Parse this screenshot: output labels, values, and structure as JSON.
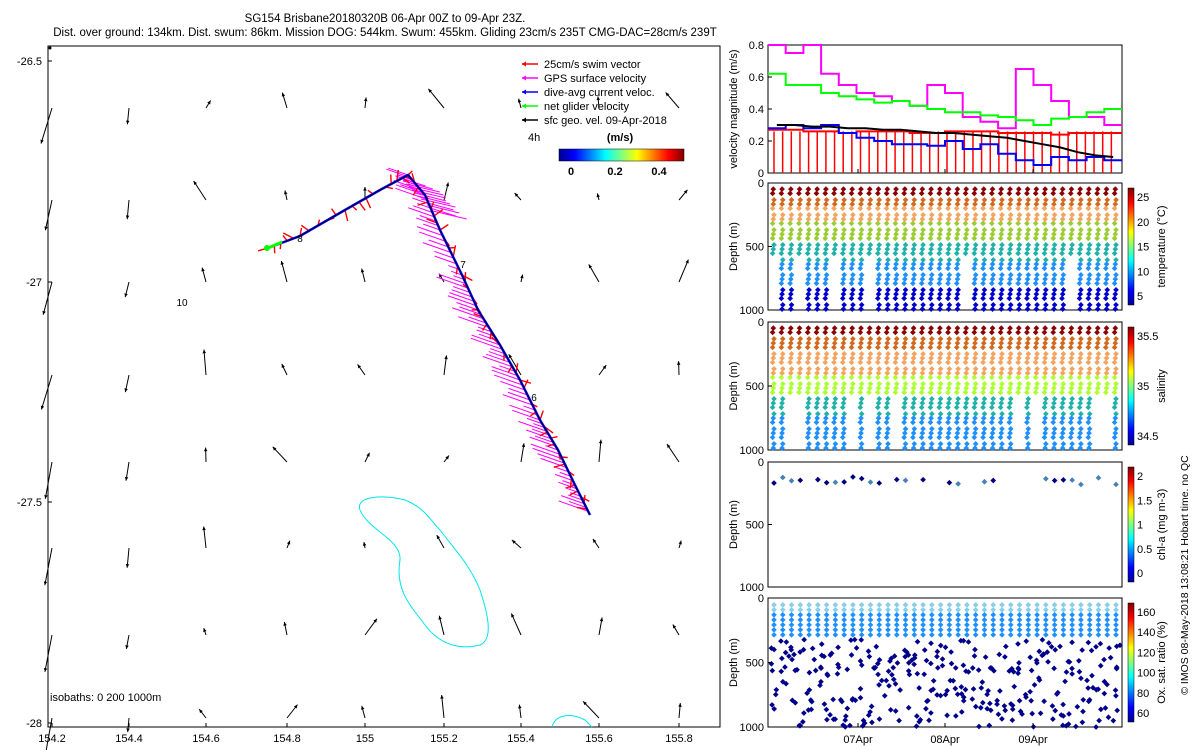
{
  "header": {
    "title": "SG154 Brisbane20180320B 06-Apr 00Z to 09-Apr 23Z.",
    "subtitle": "Dist. over ground: 134km. Dist. swum: 86km. Mission DOG: 544km. Swum: 455km. Gliding 23cm/s 235T CMG-DAC=28cm/s 239T"
  },
  "copyright": "© IMOS 08-May-2018 13:08:21 Hobart time. no QC",
  "map": {
    "x_ticks": [
      "154.2",
      "154.4",
      "154.6",
      "154.8",
      "155",
      "155.2",
      "155.4",
      "155.6",
      "155.8"
    ],
    "y_ticks": [
      "-26.5",
      "-27",
      "-27.5",
      "-28"
    ],
    "legend": [
      {
        "label": "25cm/s swim vector",
        "color": "#ff0000"
      },
      {
        "label": "GPS surface velocity",
        "color": "#ff00ff"
      },
      {
        "label": "dive-avg current veloc.",
        "color": "#0000ff"
      },
      {
        "label": "net glider velocity",
        "color": "#00ff00"
      },
      {
        "label": "sfc geo. vel. 09-Apr-2018",
        "color": "#000000"
      }
    ],
    "colorbar_label": "(m/s)",
    "colorbar_ticks": [
      "0",
      "0.2",
      "0.4"
    ],
    "colorbar_side_label": "4h",
    "isobaths_label": "isobaths: 0   200  1000m",
    "annotations": [
      "10",
      "7",
      "6",
      "8"
    ],
    "isobath_color": "#00e5ee",
    "track_color": "#0000ff",
    "swim_color": "#ff0000",
    "gps_color": "#ff00ff"
  },
  "chart_data": [
    {
      "type": "line",
      "ylabel": "velocity magnitude (m/s)",
      "ylim": [
        0,
        0.8
      ],
      "y_ticks": [
        "0.8",
        "0.6",
        "0.4",
        "0.2",
        "0"
      ],
      "x_ticks": [
        "07Apr",
        "08Apr",
        "09Apr"
      ],
      "series": [
        {
          "color": "#ff00ff",
          "values": [
            0.8,
            0.75,
            0.8,
            0.62,
            0.55,
            0.5,
            0.48,
            0.45,
            0.42,
            0.55,
            0.5,
            0.35,
            0.32,
            0.28,
            0.65,
            0.55,
            0.45,
            0.35,
            0.35,
            0.3
          ]
        },
        {
          "color": "#00ff00",
          "values": [
            0.62,
            0.55,
            0.55,
            0.5,
            0.48,
            0.46,
            0.44,
            0.45,
            0.42,
            0.4,
            0.38,
            0.38,
            0.36,
            0.35,
            0.33,
            0.3,
            0.34,
            0.35,
            0.38,
            0.4
          ]
        },
        {
          "color": "#ff0000",
          "values": [
            0.27,
            0.27,
            0.26,
            0.26,
            0.25,
            0.26,
            0.26,
            0.26,
            0.25,
            0.25,
            0.26,
            0.26,
            0.26,
            0.25,
            0.25,
            0.25,
            0.24,
            0.25,
            0.25,
            0.25
          ]
        },
        {
          "color": "#0000ff",
          "values": [
            0.28,
            0.3,
            0.28,
            0.3,
            0.25,
            0.22,
            0.2,
            0.18,
            0.18,
            0.17,
            0.2,
            0.15,
            0.18,
            0.12,
            0.08,
            0.05,
            0.1,
            0.08,
            0.1,
            0.08
          ]
        },
        {
          "color": "#000000",
          "values": [
            0.3,
            0.3,
            0.29,
            0.29,
            0.28,
            0.28,
            0.27,
            0.27,
            0.26,
            0.25,
            0.25,
            0.24,
            0.23,
            0.22,
            0.2,
            0.18,
            0.16,
            0.13,
            0.11,
            0.1
          ]
        }
      ]
    },
    {
      "type": "scatter",
      "ylabel": "Depth (m)",
      "colorbar_label": "temperature (°C)",
      "y_ticks": [
        "0",
        "500",
        "1000"
      ],
      "colorbar_ticks": [
        "25",
        "20",
        "15",
        "10",
        "5"
      ]
    },
    {
      "type": "scatter",
      "ylabel": "Depth (m)",
      "colorbar_label": "salinity",
      "y_ticks": [
        "0",
        "500",
        "1000"
      ],
      "colorbar_ticks": [
        "35.5",
        "35",
        "34.5"
      ]
    },
    {
      "type": "scatter",
      "ylabel": "Depth (m)",
      "colorbar_label": "chl-a (mg m-3)",
      "y_ticks": [
        "0",
        "500",
        "1000"
      ],
      "colorbar_ticks": [
        "2",
        "1.5",
        "1",
        "0.5",
        "0"
      ]
    },
    {
      "type": "scatter",
      "ylabel": "Depth (m)",
      "colorbar_label": "Ox. sat. ratio (%)",
      "y_ticks": [
        "0",
        "500",
        "1000"
      ],
      "colorbar_ticks": [
        "160",
        "140",
        "120",
        "100",
        "80",
        "60"
      ],
      "x_ticks": [
        "07Apr",
        "08Apr",
        "09Apr"
      ]
    }
  ]
}
